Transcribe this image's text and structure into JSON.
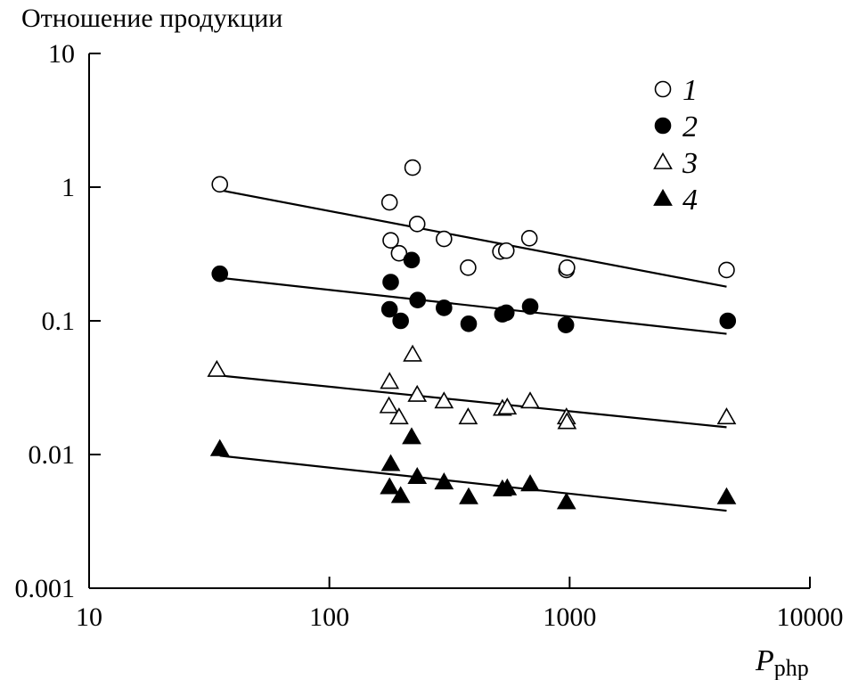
{
  "chart_data": {
    "type": "scatter",
    "title": "Отношение продукции",
    "xlabel_var": "P",
    "xlabel_sub": "php",
    "x_scale": "log",
    "y_scale": "log",
    "xlim": [
      10,
      10000
    ],
    "ylim": [
      0.001,
      10
    ],
    "x_ticks": [
      10,
      100,
      1000,
      10000
    ],
    "x_tick_labels": [
      "10",
      "100",
      "1000",
      "10000"
    ],
    "y_ticks": [
      0.001,
      0.01,
      0.1,
      1,
      10
    ],
    "y_tick_labels": [
      "0.001",
      "0.01",
      "0.1",
      "1",
      "10"
    ],
    "legend_position": "top-right",
    "series": [
      {
        "name": "1",
        "marker": "circle",
        "filled": false,
        "x": [
          35,
          178,
          222,
          180,
          195,
          232,
          300,
          378,
          515,
          545,
          680,
          970,
          975,
          4500
        ],
        "y": [
          1.05,
          0.77,
          1.4,
          0.4,
          0.32,
          0.53,
          0.41,
          0.25,
          0.33,
          0.335,
          0.415,
          0.24,
          0.25,
          0.24
        ],
        "fit": {
          "x": [
            35,
            4500
          ],
          "y": [
            0.95,
            0.18
          ]
        }
      },
      {
        "name": "2",
        "marker": "circle",
        "filled": true,
        "x": [
          35,
          180,
          220,
          178,
          198,
          233,
          300,
          380,
          525,
          545,
          685,
          965,
          4550
        ],
        "y": [
          0.225,
          0.195,
          0.285,
          0.122,
          0.1,
          0.143,
          0.125,
          0.095,
          0.112,
          0.115,
          0.128,
          0.093,
          0.1
        ],
        "fit": {
          "x": [
            35,
            4500
          ],
          "y": [
            0.21,
            0.08
          ]
        }
      },
      {
        "name": "3",
        "marker": "triangle",
        "filled": false,
        "x": [
          34,
          178,
          222,
          177,
          195,
          232,
          300,
          378,
          525,
          550,
          685,
          970,
          975,
          4500
        ],
        "y": [
          0.043,
          0.035,
          0.056,
          0.023,
          0.019,
          0.028,
          0.025,
          0.019,
          0.022,
          0.0225,
          0.025,
          0.019,
          0.0175,
          0.019
        ],
        "fit": {
          "x": [
            35,
            4500
          ],
          "y": [
            0.039,
            0.016
          ]
        }
      },
      {
        "name": "4",
        "marker": "triangle",
        "filled": true,
        "x": [
          35,
          180,
          220,
          178,
          198,
          232,
          300,
          380,
          525,
          550,
          685,
          970,
          4500
        ],
        "y": [
          0.011,
          0.0085,
          0.0135,
          0.0057,
          0.0049,
          0.0068,
          0.0062,
          0.0048,
          0.0055,
          0.0056,
          0.006,
          0.0044,
          0.0048
        ],
        "fit": {
          "x": [
            35,
            4500
          ],
          "y": [
            0.0098,
            0.0038
          ]
        }
      }
    ]
  }
}
